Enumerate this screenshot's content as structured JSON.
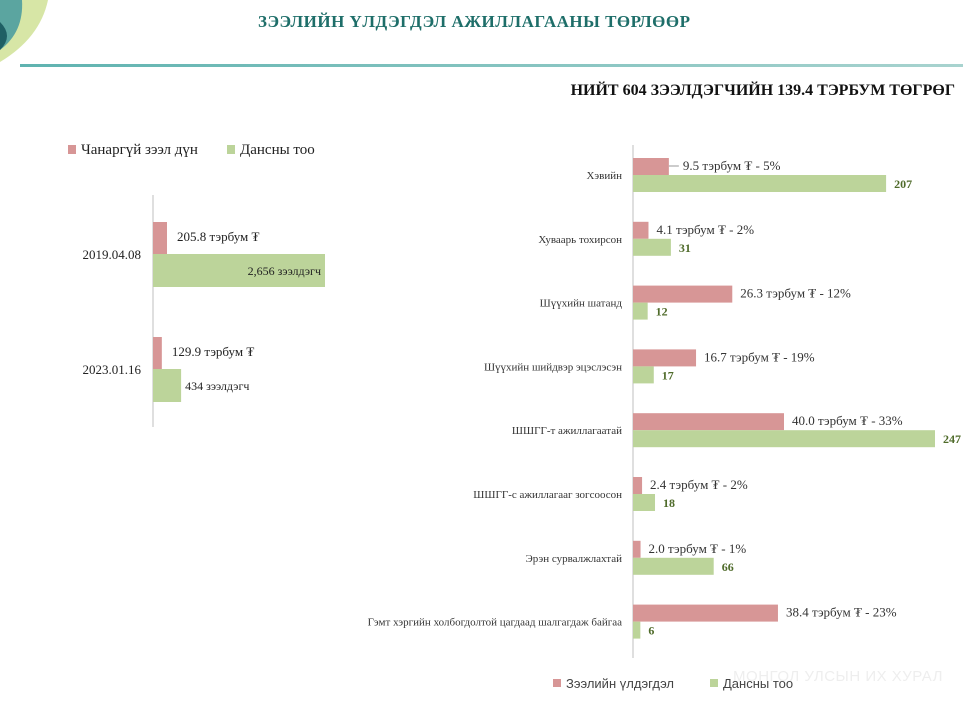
{
  "page": {
    "title": "ЗЭЭЛИЙН ҮЛДЭГДЭЛ АЖИЛЛАГААНЫ ТӨРЛӨӨР",
    "subtitle": "НИЙТ 604 ЗЭЭЛДЭГЧИЙН 139.4 ТЭРБУМ ТӨГРӨГ",
    "watermark": "МОНГОЛ УЛСЫН ИХ ХУРАЛ"
  },
  "colors": {
    "pink": "#d79696",
    "green": "#bcd49a",
    "axis": "#bfbfbf",
    "value_green": "#4f6b2a"
  },
  "chart_data": [
    {
      "type": "bar",
      "orientation": "horizontal",
      "categories": [
        "2019.04.08",
        "2023.01.16"
      ],
      "series": [
        {
          "name": "Чанаргүй зээл дүн",
          "values": [
            205.8,
            129.9
          ],
          "labels": [
            "205.8 тэрбум ₮",
            "129.9 тэрбум ₮"
          ]
        },
        {
          "name": "Дансны тоо",
          "values": [
            2656,
            434
          ],
          "labels": [
            "2,656 зээлдэгч",
            "434 зээлдэгч"
          ]
        }
      ],
      "legend": "top-left"
    },
    {
      "type": "bar",
      "orientation": "horizontal",
      "categories": [
        "Хэвийн",
        "Хуваарь тохирсон",
        "Шүүхийн шатанд",
        "Шүүхийн шийдвэр эцэслэсэн",
        "ШШГГ-т ажиллагаатай",
        "ШШГГ-с ажиллагааг зогсоосон",
        "Эрэн сурвалжлахтай",
        "Гэмт хэргийн холбогдолтой цагдаад шалгагдаж байгаа"
      ],
      "series": [
        {
          "name": "Зээлийн үлдэгдэл",
          "values": [
            9.5,
            4.1,
            26.3,
            16.7,
            40.0,
            2.4,
            2.0,
            38.4
          ],
          "labels": [
            "9.5 тэрбум ₮ - 5%",
            "4.1 тэрбум ₮ - 2%",
            "26.3 тэрбум ₮ - 12%",
            "16.7 тэрбум ₮ - 19%",
            "40.0 тэрбум ₮ - 33%",
            "2.4 тэрбум ₮ - 2%",
            "2.0 тэрбум ₮ - 1%",
            "38.4 тэрбум ₮ - 23%"
          ]
        },
        {
          "name": "Дансны тоо",
          "values": [
            207,
            31,
            12,
            17,
            247,
            18,
            66,
            6
          ],
          "labels": [
            "207",
            "31",
            "12",
            "17",
            "247",
            "18",
            "66",
            "6"
          ]
        }
      ],
      "legend": "bottom"
    }
  ]
}
